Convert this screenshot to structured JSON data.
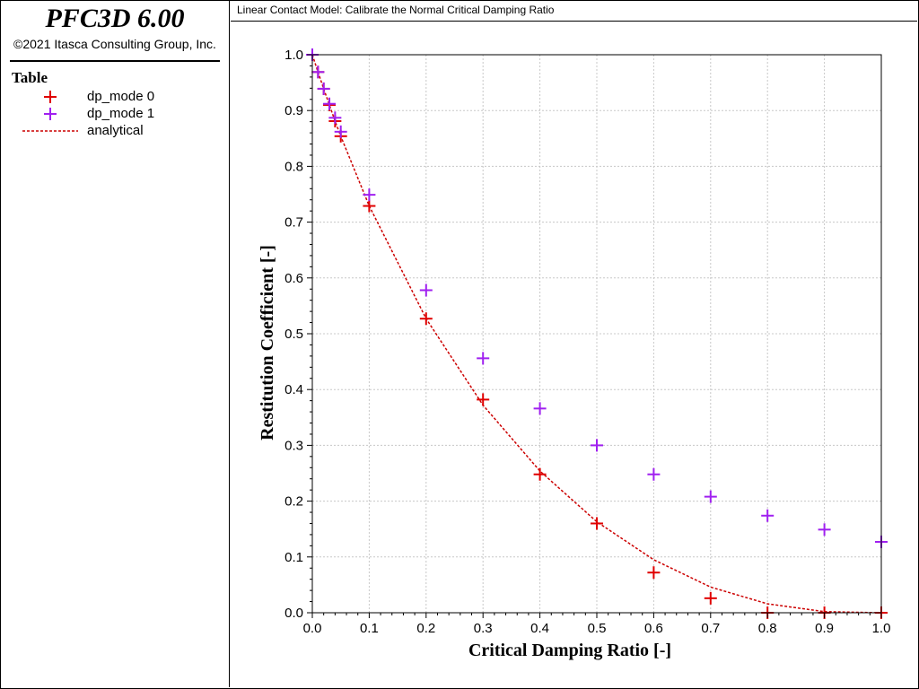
{
  "app": {
    "title": "PFC3D 6.00",
    "copyright": "©2021 Itasca Consulting Group, Inc."
  },
  "legend": {
    "title": "Table",
    "items": [
      {
        "label": "dp_mode 0",
        "symbol": "plus",
        "color": "#e00000"
      },
      {
        "label": "dp_mode 1",
        "symbol": "plus",
        "color": "#a020f0"
      },
      {
        "label": "analytical",
        "symbol": "dashed-line",
        "color": "#cc0000"
      }
    ]
  },
  "plot_title": "Linear Contact Model: Calibrate the Normal Critical Damping Ratio",
  "chart_data": {
    "type": "scatter",
    "title": "Linear Contact Model: Calibrate the Normal Critical Damping Ratio",
    "xlabel": "Critical Damping Ratio [-]",
    "ylabel": "Restitution Coefficient [-]",
    "xlim": [
      0,
      1
    ],
    "ylim": [
      0,
      1
    ],
    "x_ticks": [
      "0.0",
      "0.1",
      "0.2",
      "0.3",
      "0.4",
      "0.5",
      "0.6",
      "0.7",
      "0.8",
      "0.9",
      "1.0"
    ],
    "y_ticks": [
      "0.0",
      "0.1",
      "0.2",
      "0.3",
      "0.4",
      "0.5",
      "0.6",
      "0.7",
      "0.8",
      "0.9",
      "1.0"
    ],
    "grid": true,
    "series": [
      {
        "name": "dp_mode 0",
        "kind": "points",
        "marker": "plus",
        "color": "#e00000",
        "x": [
          0.0,
          0.01,
          0.02,
          0.03,
          0.04,
          0.05,
          0.1,
          0.2,
          0.3,
          0.4,
          0.5,
          0.6,
          0.7,
          0.8,
          0.9,
          1.0
        ],
        "y": [
          1.0,
          0.969,
          0.939,
          0.91,
          0.881,
          0.854,
          0.729,
          0.527,
          0.382,
          0.248,
          0.16,
          0.072,
          0.026,
          0.0,
          0.0,
          0.0
        ]
      },
      {
        "name": "dp_mode 1",
        "kind": "points",
        "marker": "plus",
        "color": "#a020f0",
        "x": [
          0.0,
          0.01,
          0.02,
          0.03,
          0.04,
          0.05,
          0.1,
          0.2,
          0.3,
          0.4,
          0.5,
          0.6,
          0.7,
          0.8,
          0.9,
          1.0
        ],
        "y": [
          1.0,
          0.969,
          0.939,
          0.912,
          0.887,
          0.862,
          0.749,
          0.578,
          0.456,
          0.366,
          0.3,
          0.248,
          0.208,
          0.174,
          0.149,
          0.127
        ]
      },
      {
        "name": "analytical",
        "kind": "line",
        "dash": true,
        "color": "#cc0000",
        "x": [
          0.0,
          0.01,
          0.02,
          0.03,
          0.04,
          0.05,
          0.1,
          0.2,
          0.3,
          0.4,
          0.5,
          0.6,
          0.7,
          0.8,
          0.9,
          1.0
        ],
        "y": [
          1.0,
          0.969,
          0.939,
          0.91,
          0.881,
          0.854,
          0.729,
          0.527,
          0.372,
          0.254,
          0.163,
          0.095,
          0.046,
          0.016,
          0.002,
          0.0
        ]
      }
    ]
  }
}
